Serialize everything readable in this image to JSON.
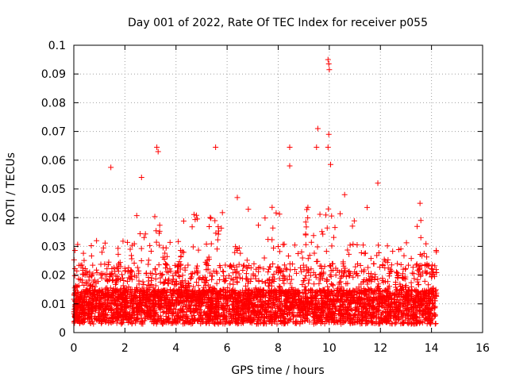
{
  "chart_data": {
    "type": "scatter",
    "title": "Day 001 of 2022, Rate Of TEC Index for receiver p055",
    "xlabel": "GPS time / hours",
    "ylabel": "ROTI / TECUs",
    "xlim": [
      0,
      16
    ],
    "ylim": [
      0,
      0.1
    ],
    "xticks": [
      0,
      2,
      4,
      6,
      8,
      10,
      12,
      14,
      16
    ],
    "yticks": [
      0,
      0.01,
      0.02,
      0.03,
      0.04,
      0.05,
      0.06,
      0.07,
      0.08,
      0.09,
      0.1
    ],
    "xtick_labels": [
      "0",
      "2",
      "4",
      "6",
      "8",
      "10",
      "12",
      "14",
      "16"
    ],
    "ytick_labels": [
      "0",
      "0.01",
      "0.02",
      "0.03",
      "0.04",
      "0.05",
      "0.06",
      "0.07",
      "0.08",
      "0.09",
      "0.1"
    ],
    "grid": true,
    "marker": "+",
    "color": "#ff0000",
    "series": [
      {
        "name": "ROTI",
        "x_range": [
          0,
          14.2
        ],
        "baseline_typical": [
          0.005,
          0.015
        ],
        "notable_points": [
          {
            "x": 1.45,
            "y": 0.0575
          },
          {
            "x": 2.65,
            "y": 0.054
          },
          {
            "x": 3.25,
            "y": 0.0645
          },
          {
            "x": 3.3,
            "y": 0.063
          },
          {
            "x": 5.55,
            "y": 0.0645
          },
          {
            "x": 8.45,
            "y": 0.0645
          },
          {
            "x": 9.55,
            "y": 0.071
          },
          {
            "x": 9.5,
            "y": 0.0645
          },
          {
            "x": 9.95,
            "y": 0.095
          },
          {
            "x": 9.98,
            "y": 0.0935
          },
          {
            "x": 10.0,
            "y": 0.0915
          },
          {
            "x": 9.98,
            "y": 0.069
          },
          {
            "x": 9.95,
            "y": 0.0645
          },
          {
            "x": 10.05,
            "y": 0.0585
          },
          {
            "x": 8.45,
            "y": 0.058
          },
          {
            "x": 11.9,
            "y": 0.052
          },
          {
            "x": 10.6,
            "y": 0.048
          },
          {
            "x": 13.55,
            "y": 0.045
          },
          {
            "x": 6.4,
            "y": 0.047
          }
        ]
      }
    ]
  }
}
